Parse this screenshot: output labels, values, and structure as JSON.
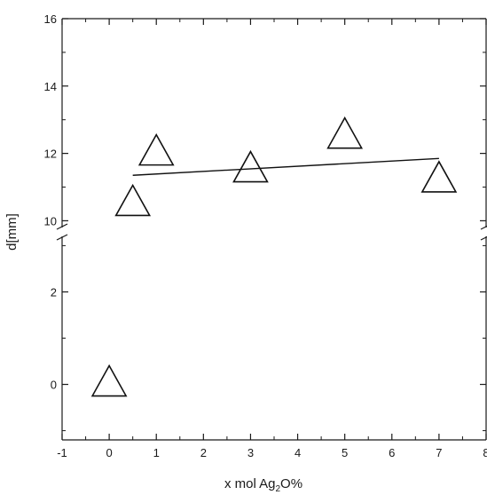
{
  "chart_data": {
    "type": "scatter",
    "title": "",
    "xlabel": {
      "pre": "x mol Ag",
      "sub": "2",
      "post": "O%"
    },
    "ylabel": "d[mm]",
    "xlim": [
      -1,
      8
    ],
    "x_ticks": [
      -1,
      0,
      1,
      2,
      3,
      4,
      5,
      6,
      7,
      8
    ],
    "x_tick_labels": [
      "-1",
      "0",
      "1",
      "2",
      "3",
      "4",
      "5",
      "6",
      "7",
      "8"
    ],
    "y_break": true,
    "y_lower_range": [
      -1.2,
      3.2
    ],
    "y_upper_range": [
      9.8,
      16
    ],
    "y_ticks": [
      0,
      2,
      10,
      12,
      14,
      16
    ],
    "y_tick_labels": [
      "0",
      "2",
      "10",
      "12",
      "14",
      "16"
    ],
    "marker": "open-triangle",
    "grid": false,
    "legend": "none",
    "series": [
      {
        "points": [
          {
            "x": 0,
            "y": 0
          },
          {
            "x": 0.5,
            "y": 10.5
          },
          {
            "x": 1,
            "y": 12
          },
          {
            "x": 3,
            "y": 11.5
          },
          {
            "x": 5,
            "y": 12.5
          },
          {
            "x": 7,
            "y": 11.2
          }
        ]
      }
    ],
    "fit_line": {
      "x": [
        0.5,
        7
      ],
      "y": [
        11.35,
        11.85
      ]
    },
    "colors": {
      "axis": "#1a1a1a",
      "marker_stroke": "#111111",
      "fit_line": "#111111",
      "background": "#ffffff"
    }
  }
}
